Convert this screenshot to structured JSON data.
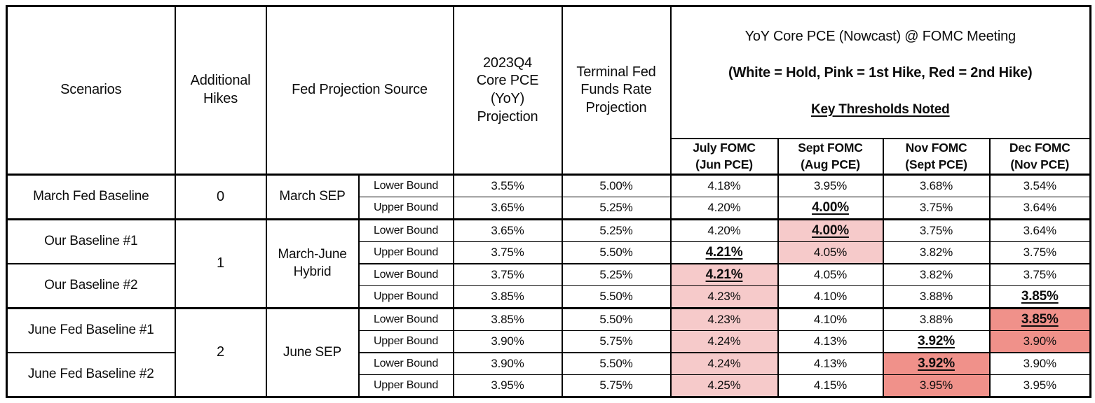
{
  "colors": {
    "white": "#ffffff",
    "pink": "#f6caca",
    "red": "#f0918a",
    "border": "#000000",
    "text": "#0d0d0d"
  },
  "header": {
    "scenarios": "Scenarios",
    "additional_hikes": "Additional\nHikes",
    "fed_projection_source": "Fed Projection Source",
    "core_pce_projection": "2023Q4\nCore PCE\n(YoY)\nProjection",
    "terminal_rate_projection": "Terminal Fed\nFunds Rate\nProjection",
    "nowcast_line1": "YoY Core PCE (Nowcast) @ FOMC Meeting",
    "nowcast_line2": "(White = Hold, Pink = 1st Hike, Red = 2nd Hike)",
    "nowcast_line3": "Key Thresholds Noted",
    "fomc_columns": [
      "July FOMC\n(Jun PCE)",
      "Sept FOMC\n(Aug PCE)",
      "Nov FOMC\n(Sept PCE)",
      "Dec FOMC\n(Nov PCE)"
    ]
  },
  "chart_data": {
    "type": "table",
    "title": "YoY Core PCE (Nowcast) @ FOMC Meeting",
    "highlight_legend": {
      "white": "Hold",
      "pink": "1st Hike",
      "red": "2nd Hike"
    },
    "columns": [
      "Scenarios",
      "Additional Hikes",
      "Fed Projection Source",
      "Bound",
      "2023Q4 Core PCE (YoY) Projection",
      "Terminal Fed Funds Rate Projection",
      "July FOMC (Jun PCE)",
      "Sept FOMC (Aug PCE)",
      "Nov FOMC (Sept PCE)",
      "Dec FOMC (Nov PCE)"
    ],
    "rows": [
      {
        "scenario": "March Fed Baseline",
        "hikes": "0",
        "source": "March SEP",
        "bound": "Lower Bound",
        "core_pce": "3.55%",
        "terminal": "5.00%",
        "fomc": [
          {
            "v": "4.18%",
            "bg": "white"
          },
          {
            "v": "3.95%",
            "bg": "white"
          },
          {
            "v": "3.68%",
            "bg": "white"
          },
          {
            "v": "3.54%",
            "bg": "white"
          }
        ]
      },
      {
        "bound": "Upper Bound",
        "core_pce": "3.65%",
        "terminal": "5.25%",
        "fomc": [
          {
            "v": "4.20%",
            "bg": "white"
          },
          {
            "v": "4.00%",
            "bg": "white",
            "threshold": true
          },
          {
            "v": "3.75%",
            "bg": "white"
          },
          {
            "v": "3.64%",
            "bg": "white"
          }
        ]
      },
      {
        "scenario": "Our Baseline #1",
        "hikes": "1",
        "source": "March-June\nHybrid",
        "bound": "Lower Bound",
        "core_pce": "3.65%",
        "terminal": "5.25%",
        "fomc": [
          {
            "v": "4.20%",
            "bg": "white"
          },
          {
            "v": "4.00%",
            "bg": "pink",
            "threshold": true
          },
          {
            "v": "3.75%",
            "bg": "white"
          },
          {
            "v": "3.64%",
            "bg": "white"
          }
        ]
      },
      {
        "bound": "Upper Bound",
        "core_pce": "3.75%",
        "terminal": "5.50%",
        "fomc": [
          {
            "v": "4.21%",
            "bg": "white",
            "threshold": true
          },
          {
            "v": "4.05%",
            "bg": "pink"
          },
          {
            "v": "3.82%",
            "bg": "white"
          },
          {
            "v": "3.75%",
            "bg": "white"
          }
        ]
      },
      {
        "scenario": "Our Baseline #2",
        "bound": "Lower Bound",
        "core_pce": "3.75%",
        "terminal": "5.25%",
        "fomc": [
          {
            "v": "4.21%",
            "bg": "pink",
            "threshold": true
          },
          {
            "v": "4.05%",
            "bg": "white"
          },
          {
            "v": "3.82%",
            "bg": "white"
          },
          {
            "v": "3.75%",
            "bg": "white"
          }
        ]
      },
      {
        "bound": "Upper Bound",
        "core_pce": "3.85%",
        "terminal": "5.50%",
        "fomc": [
          {
            "v": "4.23%",
            "bg": "pink"
          },
          {
            "v": "4.10%",
            "bg": "white"
          },
          {
            "v": "3.88%",
            "bg": "white"
          },
          {
            "v": "3.85%",
            "bg": "white",
            "threshold": true
          }
        ]
      },
      {
        "scenario": "June Fed Baseline #1",
        "hikes": "2",
        "source": "June SEP",
        "bound": "Lower Bound",
        "core_pce": "3.85%",
        "terminal": "5.50%",
        "fomc": [
          {
            "v": "4.23%",
            "bg": "pink"
          },
          {
            "v": "4.10%",
            "bg": "white"
          },
          {
            "v": "3.88%",
            "bg": "white"
          },
          {
            "v": "3.85%",
            "bg": "red",
            "threshold": true
          }
        ]
      },
      {
        "bound": "Upper Bound",
        "core_pce": "3.90%",
        "terminal": "5.75%",
        "fomc": [
          {
            "v": "4.24%",
            "bg": "pink"
          },
          {
            "v": "4.13%",
            "bg": "white"
          },
          {
            "v": "3.92%",
            "bg": "white",
            "threshold": true
          },
          {
            "v": "3.90%",
            "bg": "red"
          }
        ]
      },
      {
        "scenario": "June Fed Baseline #2",
        "bound": "Lower Bound",
        "core_pce": "3.90%",
        "terminal": "5.50%",
        "fomc": [
          {
            "v": "4.24%",
            "bg": "pink"
          },
          {
            "v": "4.13%",
            "bg": "white"
          },
          {
            "v": "3.92%",
            "bg": "red",
            "threshold": true
          },
          {
            "v": "3.90%",
            "bg": "white"
          }
        ]
      },
      {
        "bound": "Upper Bound",
        "core_pce": "3.95%",
        "terminal": "5.75%",
        "fomc": [
          {
            "v": "4.25%",
            "bg": "pink"
          },
          {
            "v": "4.15%",
            "bg": "white"
          },
          {
            "v": "3.95%",
            "bg": "red"
          },
          {
            "v": "3.95%",
            "bg": "white"
          }
        ]
      }
    ]
  }
}
